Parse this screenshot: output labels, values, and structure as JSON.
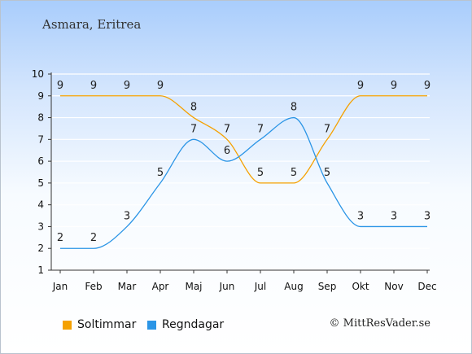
{
  "header": {
    "title": "Asmara, Eritrea"
  },
  "legend": {
    "series_a": "Soltimmar",
    "series_b": "Regndagar"
  },
  "credit": "© MittResVader.se",
  "colors": {
    "series_a": "#f5a100",
    "series_b": "#2b95e6"
  },
  "chart_data": {
    "type": "line",
    "categories": [
      "Jan",
      "Feb",
      "Mar",
      "Apr",
      "Maj",
      "Jun",
      "Jul",
      "Aug",
      "Sep",
      "Okt",
      "Nov",
      "Dec"
    ],
    "series": [
      {
        "name": "Soltimmar",
        "values": [
          9,
          9,
          9,
          9,
          8,
          7,
          5,
          5,
          7,
          9,
          9,
          9
        ]
      },
      {
        "name": "Regndagar",
        "values": [
          2,
          2,
          3,
          5,
          7,
          6,
          7,
          8,
          5,
          3,
          3,
          3
        ]
      }
    ],
    "ylim": [
      1,
      10
    ],
    "yticks": [
      1,
      2,
      3,
      4,
      5,
      6,
      7,
      8,
      9,
      10
    ],
    "grid": true,
    "legend_position": "bottom-left"
  }
}
